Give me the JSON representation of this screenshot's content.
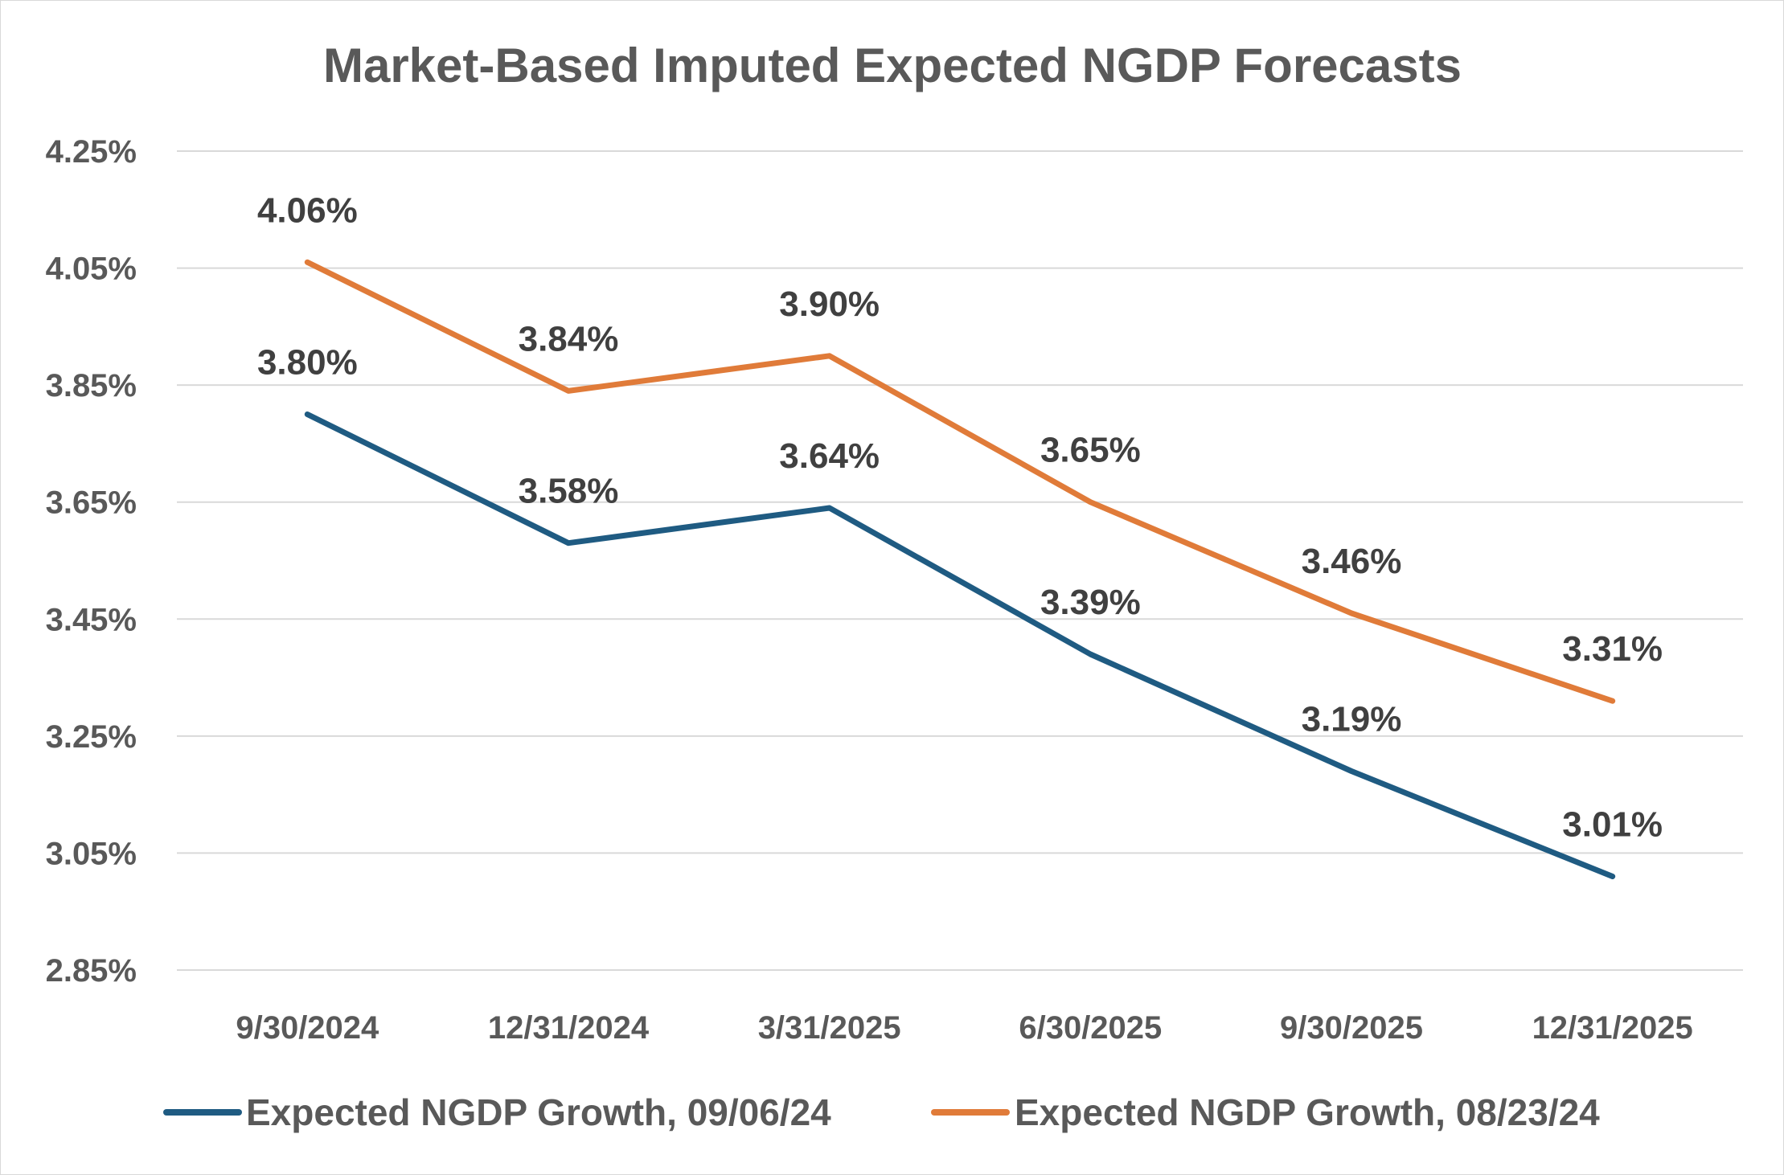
{
  "chart_data": {
    "type": "line",
    "title": "Market-Based Imputed Expected NGDP Forecasts",
    "xlabel": "",
    "ylabel": "",
    "categories": [
      "9/30/2024",
      "12/31/2024",
      "3/31/2025",
      "6/30/2025",
      "9/30/2025",
      "12/31/2025"
    ],
    "yticks": [
      "2.85%",
      "3.05%",
      "3.25%",
      "3.45%",
      "3.65%",
      "3.85%",
      "4.05%",
      "4.25%"
    ],
    "ylim": [
      2.85,
      4.25
    ],
    "grid": true,
    "legend_position": "bottom",
    "series": [
      {
        "name": "Expected NGDP Growth, 09/06/24",
        "color": "#1f5b82",
        "values": [
          3.8,
          3.58,
          3.64,
          3.39,
          3.19,
          3.01
        ],
        "labels": [
          "3.80%",
          "3.58%",
          "3.64%",
          "3.39%",
          "3.19%",
          "3.01%"
        ]
      },
      {
        "name": "Expected NGDP Growth, 08/23/24",
        "color": "#e07b39",
        "values": [
          4.06,
          3.84,
          3.9,
          3.65,
          3.46,
          3.31
        ],
        "labels": [
          "4.06%",
          "3.84%",
          "3.90%",
          "3.65%",
          "3.46%",
          "3.31%"
        ]
      }
    ]
  },
  "colors": {
    "text": "#595959",
    "data_label": "#404040",
    "gridline": "#d9d9d9",
    "background": "#ffffff"
  }
}
